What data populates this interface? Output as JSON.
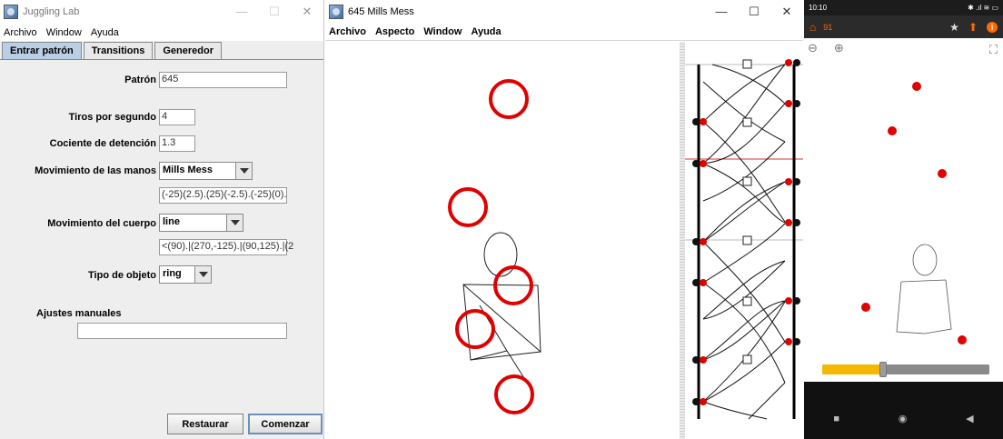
{
  "left_window": {
    "title": "Juggling Lab",
    "menu": [
      "Archivo",
      "Window",
      "Ayuda"
    ],
    "tabs": [
      "Entrar patrón",
      "Transitions",
      "Generedor"
    ],
    "form": {
      "pattern_label": "Patrón",
      "pattern_value": "645",
      "throws_label": "Tiros por segundo",
      "throws_value": "4",
      "dwell_label": "Cociente de detención",
      "dwell_value": "1.3",
      "hands_label": "Movimiento de las manos",
      "hands_selected": "Mills Mess",
      "hands_value": "(-25)(2.5).(25)(-2.5).(-25)(0).",
      "body_label": "Movimiento del cuerpo",
      "body_selected": "line",
      "body_value": "<(90).|(270,-125).|(90,125).|(2",
      "prop_label": "Tipo de objeto",
      "prop_selected": "ring",
      "manual_label": "Ajustes manuales",
      "manual_value": ""
    },
    "buttons": {
      "reset": "Restaurar",
      "start": "Comenzar"
    }
  },
  "middle_window": {
    "title": "645 Mills Mess",
    "menu": [
      "Archivo",
      "Aspecto",
      "Window",
      "Ayuda"
    ]
  },
  "phone": {
    "status_time": "10:10",
    "status_icons": "✱ .ıl ≋ ▭",
    "counter": "91",
    "slider_percent": 36,
    "nav": [
      "■",
      "◉",
      "◀"
    ]
  },
  "colors": {
    "ball_red": "#e00000",
    "tab_active": "#b8cfe5",
    "phone_bar": "#2b2b2b",
    "phone_accent": "#ff6a00",
    "slider_fill": "#f5b800"
  }
}
